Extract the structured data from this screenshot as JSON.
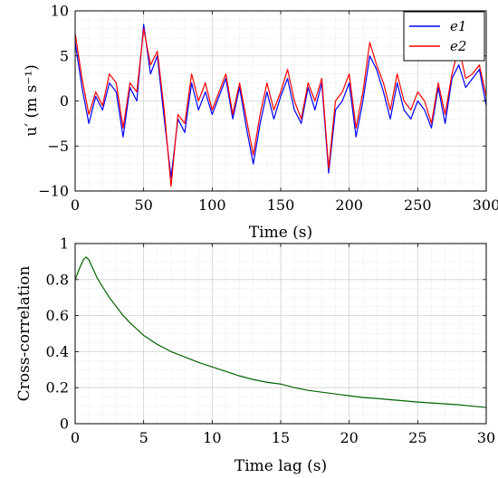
{
  "chart_data": [
    {
      "type": "line",
      "xlabel": "Time (s)",
      "ylabel": "u′ (m s⁻¹)",
      "xlim": [
        0,
        300
      ],
      "ylim": [
        -10,
        10
      ],
      "xticks": [
        "0",
        "50",
        "100",
        "150",
        "200",
        "250",
        "300"
      ],
      "yticks": [
        "−10",
        "−5",
        "0",
        "5",
        "10"
      ],
      "grid": true,
      "legend_position": "top-right",
      "x": [
        0,
        5,
        10,
        15,
        20,
        25,
        30,
        35,
        40,
        45,
        50,
        55,
        60,
        65,
        70,
        75,
        80,
        85,
        90,
        95,
        100,
        105,
        110,
        115,
        120,
        125,
        130,
        135,
        140,
        145,
        150,
        155,
        160,
        165,
        170,
        175,
        180,
        185,
        190,
        195,
        200,
        205,
        210,
        215,
        220,
        225,
        230,
        235,
        240,
        245,
        250,
        255,
        260,
        265,
        270,
        275,
        280,
        285,
        290,
        295,
        300
      ],
      "series": [
        {
          "name": "e1",
          "color": "#0000ff",
          "values": [
            6.5,
            1.5,
            -2.5,
            0.5,
            -1.0,
            2.0,
            1.0,
            -4.0,
            1.5,
            0.0,
            8.5,
            3.0,
            5.0,
            -2.0,
            -8.5,
            -2.0,
            -3.5,
            2.0,
            -1.0,
            1.0,
            -1.5,
            0.5,
            2.5,
            -2.0,
            1.5,
            -3.0,
            -7.0,
            -2.5,
            1.0,
            -2.0,
            0.5,
            2.5,
            -1.0,
            -2.5,
            1.5,
            -1.0,
            2.0,
            -8.0,
            -1.0,
            0.0,
            2.0,
            -4.0,
            0.0,
            5.0,
            3.5,
            1.0,
            -2.0,
            2.0,
            -1.0,
            -2.0,
            0.0,
            -1.0,
            -3.0,
            1.5,
            -2.5,
            2.5,
            4.0,
            1.5,
            2.5,
            3.5,
            -0.5
          ]
        },
        {
          "name": "e2",
          "color": "#ff0000",
          "values": [
            7.5,
            2.5,
            -1.5,
            1.0,
            -0.5,
            3.0,
            2.0,
            -3.0,
            2.0,
            1.0,
            8.0,
            4.0,
            5.5,
            -1.0,
            -9.5,
            -1.5,
            -2.5,
            3.0,
            0.0,
            2.0,
            -1.0,
            1.0,
            3.0,
            -1.5,
            2.0,
            -2.0,
            -6.0,
            -1.5,
            2.0,
            -1.0,
            1.0,
            3.5,
            0.0,
            -2.0,
            2.0,
            0.0,
            2.5,
            -7.5,
            0.0,
            1.0,
            3.0,
            -3.0,
            1.0,
            6.5,
            4.0,
            2.0,
            -1.0,
            3.0,
            0.0,
            -1.0,
            1.0,
            0.0,
            -2.5,
            2.0,
            -1.5,
            3.0,
            6.0,
            2.5,
            3.0,
            4.0,
            0.5
          ]
        }
      ]
    },
    {
      "type": "line",
      "xlabel": "Time lag (s)",
      "ylabel": "Cross-correlation",
      "xlim": [
        0,
        30
      ],
      "ylim": [
        0,
        1
      ],
      "xticks": [
        "0",
        "5",
        "10",
        "15",
        "20",
        "25",
        "30"
      ],
      "yticks": [
        "0",
        "0.2",
        "0.4",
        "0.6",
        "0.8",
        "1"
      ],
      "grid": true,
      "x": [
        0,
        0.3,
        0.6,
        0.8,
        1.0,
        1.3,
        1.6,
        2.0,
        2.5,
        3.0,
        3.5,
        4.0,
        5.0,
        6.0,
        7.0,
        8.0,
        9.0,
        10.0,
        11.0,
        12.0,
        13.0,
        14.0,
        15.0,
        16.0,
        17.0,
        18.0,
        19.0,
        20.0,
        21.0,
        22.0,
        23.0,
        24.0,
        25.0,
        26.0,
        27.0,
        28.0,
        29.0,
        30.0
      ],
      "series": [
        {
          "color": "#006400",
          "values": [
            0.8,
            0.86,
            0.91,
            0.925,
            0.91,
            0.86,
            0.81,
            0.76,
            0.7,
            0.65,
            0.6,
            0.56,
            0.49,
            0.44,
            0.4,
            0.37,
            0.34,
            0.315,
            0.29,
            0.265,
            0.245,
            0.23,
            0.22,
            0.2,
            0.185,
            0.175,
            0.165,
            0.155,
            0.145,
            0.14,
            0.133,
            0.127,
            0.12,
            0.115,
            0.11,
            0.105,
            0.097,
            0.09
          ]
        }
      ]
    }
  ]
}
